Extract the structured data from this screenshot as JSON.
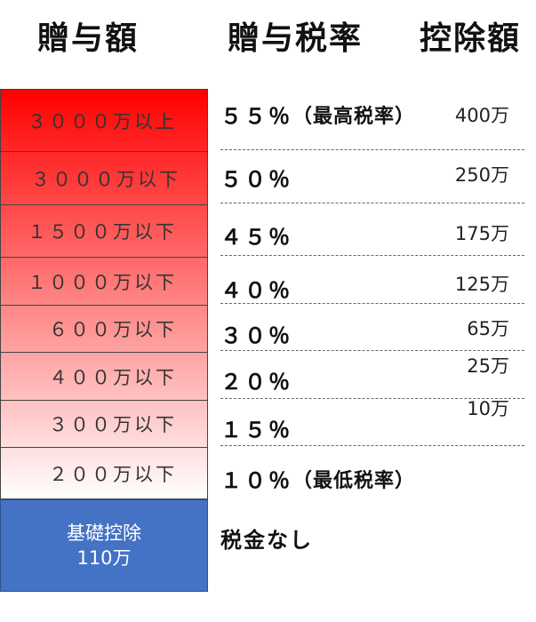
{
  "chart_data": {
    "type": "table",
    "headers": [
      "贈与額",
      "贈与税率",
      "控除額"
    ],
    "rows": [
      {
        "amount": "３０００万以上",
        "rate": "５５％",
        "rate_note": "（最高税率）",
        "deduction": "400万"
      },
      {
        "amount": "３０００万以下",
        "rate": "５０％",
        "rate_note": "",
        "deduction": "250万"
      },
      {
        "amount": "１５００万以下",
        "rate": "４５％",
        "rate_note": "",
        "deduction": "175万"
      },
      {
        "amount": "１０００万以下",
        "rate": "４０％",
        "rate_note": "",
        "deduction": "125万"
      },
      {
        "amount": "６００万以下",
        "rate": "３０％",
        "rate_note": "",
        "deduction": "65万"
      },
      {
        "amount": "４００万以下",
        "rate": "２０％",
        "rate_note": "",
        "deduction": "25万"
      },
      {
        "amount": "３００万以下",
        "rate": "１５％",
        "rate_note": "",
        "deduction": "10万"
      },
      {
        "amount": "２００万以下",
        "rate": "１０％",
        "rate_note": "（最低税率）",
        "deduction": ""
      }
    ],
    "basic": {
      "label": "基礎控除",
      "amount": "110万",
      "rate": "税金なし"
    },
    "colors": {
      "gradient_top": "#ff0000",
      "gradient_bottom": "#ffffff",
      "basic_bg": "#4472c4"
    }
  }
}
